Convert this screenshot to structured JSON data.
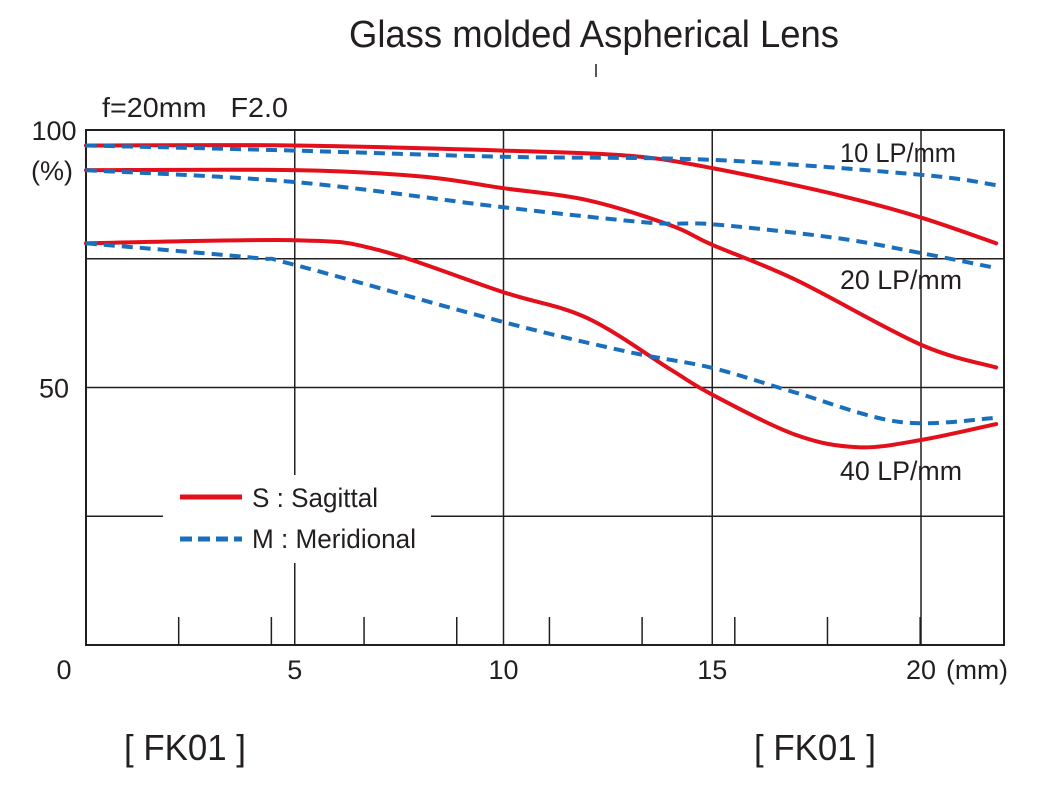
{
  "chart_data": {
    "type": "line",
    "title": "Glass molded Aspherical Lens",
    "subtitle": "f=20mm   F2.0",
    "xlabel": "(mm)",
    "ylabel": "(%)",
    "xlim": [
      0,
      22
    ],
    "ylim": [
      0,
      100
    ],
    "x_ticks": [
      {
        "v": 0,
        "label": "0"
      },
      {
        "v": 5,
        "label": "5"
      },
      {
        "v": 10,
        "label": "10"
      },
      {
        "v": 15,
        "label": "15"
      },
      {
        "v": 20,
        "label": "20"
      }
    ],
    "y_ticks": [
      {
        "v": 100,
        "label": "100"
      },
      {
        "v": 50,
        "label": "50"
      }
    ],
    "y_grid": [
      25,
      50,
      75
    ],
    "x_grid": [
      5,
      10,
      15,
      20
    ],
    "minor_x_tick_step": 2.22,
    "grid": true,
    "legend_position": "bottom-left",
    "legend": [
      {
        "key": "S",
        "label": "S : Sagittal",
        "color": "#e3101c",
        "style": "solid"
      },
      {
        "key": "M",
        "label": "M : Meridional",
        "color": "#1a6fbd",
        "style": "dashed"
      }
    ],
    "series": [
      {
        "name": "10 LP/mm S",
        "type": "S",
        "x": [
          0,
          5,
          10,
          13,
          15,
          18,
          20,
          21.8
        ],
        "y": [
          97,
          97,
          96,
          95,
          92.6,
          87.4,
          83,
          78
        ]
      },
      {
        "name": "10 LP/mm M",
        "type": "M",
        "x": [
          0,
          5,
          10,
          15,
          20,
          21.8
        ],
        "y": [
          97,
          96,
          94.8,
          94.2,
          91.3,
          89.3
        ]
      },
      {
        "name": "20 LP/mm S",
        "type": "S",
        "x": [
          0,
          5,
          8,
          10,
          12,
          14,
          15,
          17,
          20,
          21.8
        ],
        "y": [
          92.2,
          92.2,
          91,
          88.7,
          86.4,
          81.5,
          77.7,
          70.9,
          58.3,
          53.9
        ]
      },
      {
        "name": "20 LP/mm M",
        "type": "M",
        "x": [
          0,
          5,
          10,
          13.5,
          15,
          18,
          20,
          21.8
        ],
        "y": [
          92.2,
          89.9,
          85,
          82,
          81.7,
          79,
          76.1,
          73.2
        ]
      },
      {
        "name": "40 LP/mm S",
        "type": "S",
        "x": [
          0,
          5,
          7,
          10,
          12,
          14,
          15,
          17,
          18.5,
          20,
          21.8
        ],
        "y": [
          78,
          78.6,
          76.7,
          68.5,
          63.5,
          53.5,
          48.6,
          40.8,
          38.4,
          39.8,
          42.9
        ]
      },
      {
        "name": "40 LP/mm M",
        "type": "M",
        "x": [
          0,
          4,
          5,
          10,
          13,
          15,
          17,
          19.5,
          21.8
        ],
        "y": [
          78,
          75.2,
          73.8,
          62.7,
          56.9,
          53.8,
          49,
          43.3,
          44.1
        ]
      }
    ],
    "annotations": {
      "lp10": "10 LP/mm",
      "lp20": "20 LP/mm",
      "lp40": "40 LP/mm"
    },
    "footer_labels": [
      "[ FK01 ]",
      "[ FK01 ]"
    ]
  }
}
